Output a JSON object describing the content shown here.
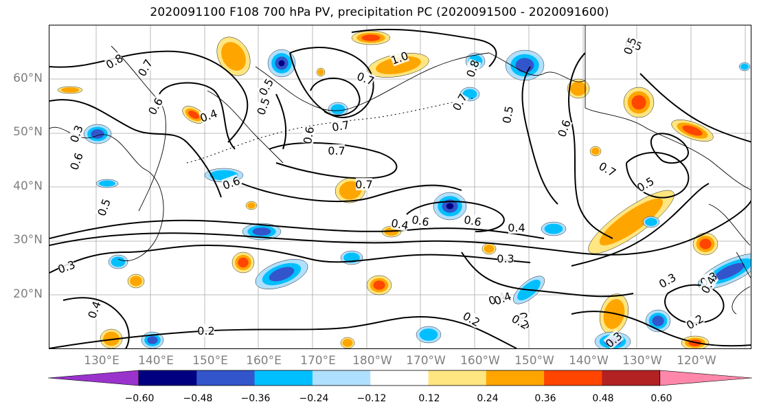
{
  "title": "2020091100 F108 700 hPa PV, precipitation PC (2020091500 - 2020091600)",
  "lat_labels": [
    "60°N",
    "50°N",
    "40°N",
    "30°N",
    "20°N"
  ],
  "lon_labels": [
    "130°E",
    "140°E",
    "150°E",
    "160°E",
    "170°E",
    "180°W",
    "170°W",
    "160°W",
    "150°W",
    "140°W",
    "130°W",
    "120°W"
  ],
  "colorbar": {
    "colors": [
      "#9933cc",
      "#000080",
      "#3355cc",
      "#00bfff",
      "#b0e0ff",
      "#ffffff",
      "#ffe680",
      "#ffa500",
      "#ff4500",
      "#b22222",
      "#ff88aa"
    ],
    "tick_labels": [
      "−0.60",
      "−0.48",
      "−0.36",
      "−0.24",
      "−0.12",
      "0.12",
      "0.24",
      "0.36",
      "0.48",
      "0.60"
    ]
  },
  "contour_labels": [
    "0.8",
    "0.7",
    "0.6",
    "0.4",
    "0.5",
    "0.6",
    "0.3",
    "0.6",
    "0.6",
    "0.5",
    "0.5",
    "0.7",
    "0.7",
    "1.0",
    "0.7",
    "0.8",
    "0.5",
    "0.6",
    "0.7",
    "0.5",
    "0.4",
    "0.6",
    "0.5",
    "0.5",
    "0.7",
    "0.7",
    "0.4",
    "0.6",
    "0.3",
    "0.3",
    "0.4",
    "0.2",
    "0.2",
    "0.3",
    "0.4",
    "0.2",
    "0.2",
    "0.3",
    "0.4",
    "0.4",
    "0.3",
    "0.2"
  ],
  "colors": {
    "contour": "#000000",
    "grid": "#a9a9a9",
    "coast": "#000000",
    "axis_label": "#7f7f7f"
  }
}
